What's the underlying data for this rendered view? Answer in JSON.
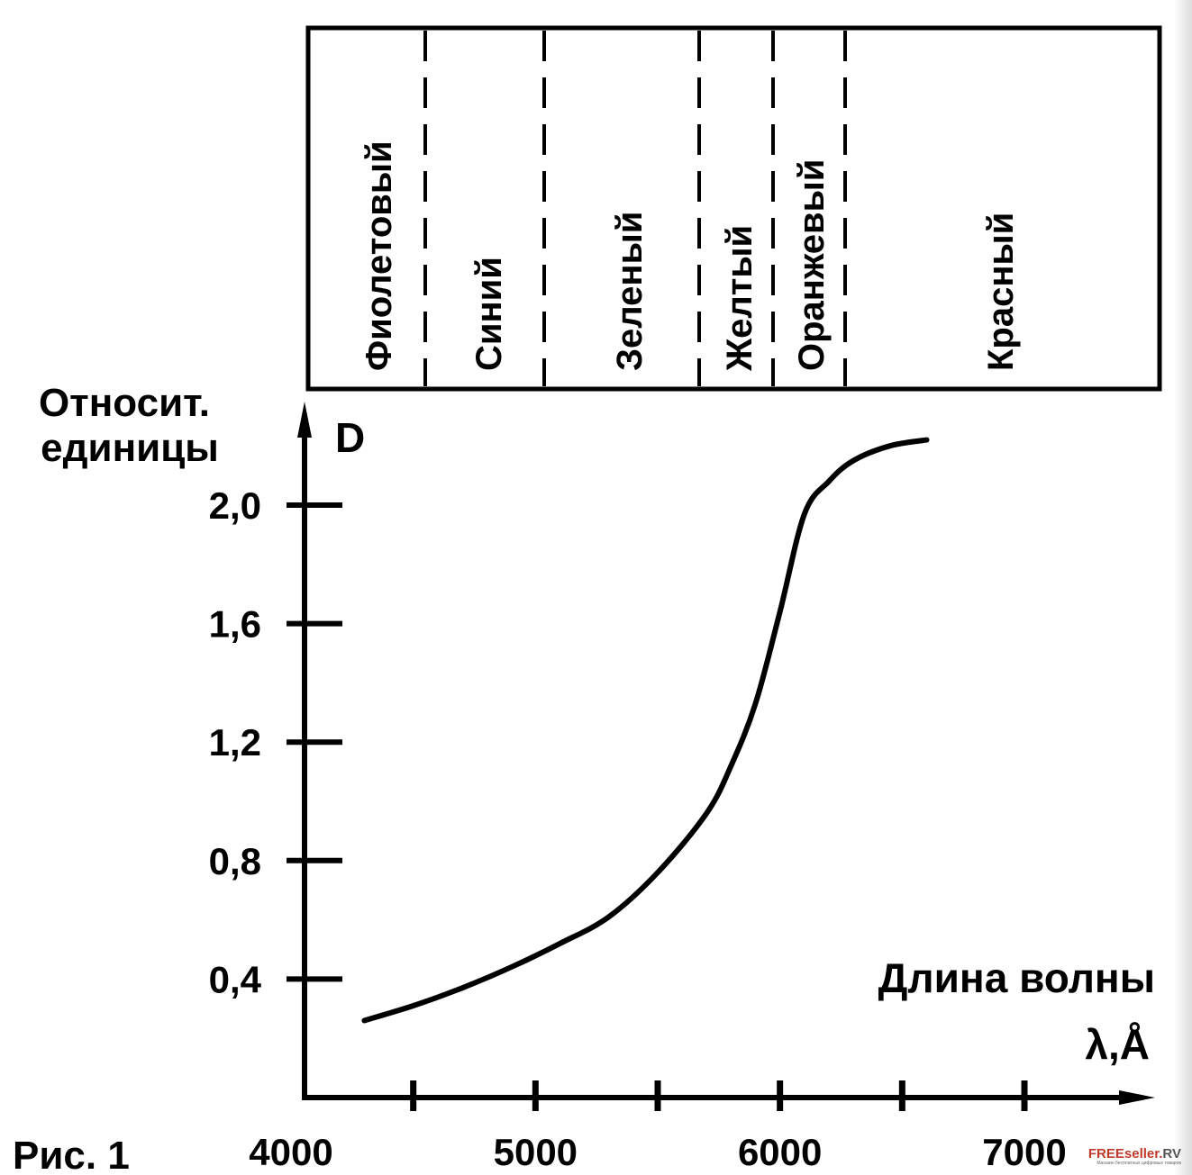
{
  "figure": {
    "caption": "Рис. 1"
  },
  "spectrum_bands": [
    "Фиолетовый",
    "Синий",
    "Зеленый",
    "Желтый",
    "Оранжевый",
    "Красный"
  ],
  "watermark": {
    "brand": "FREEseller.",
    "brand_suffix": "RV",
    "tagline": "Магазин бесплатных цифровых товаров"
  },
  "chart_data": {
    "type": "line",
    "ylabel": "Относит. единицы",
    "ylabel_line1": "Относит.",
    "ylabel_line2": "единицы",
    "series_label": "D",
    "xlabel": "Длина волны",
    "xunit": "λ,Å",
    "xlim": [
      4000,
      7400
    ],
    "ylim": [
      0,
      2.4
    ],
    "x_ticks": [
      4000,
      5000,
      6000,
      7000
    ],
    "x_tick_labels": [
      "4000",
      "5000",
      "6000",
      "7000"
    ],
    "x_minor_ticks": [
      4500,
      5500,
      6500
    ],
    "y_ticks": [
      0.4,
      0.8,
      1.2,
      1.6,
      2.0
    ],
    "y_tick_labels": [
      "0,4",
      "0,8",
      "1,2",
      "1,6",
      "2,0"
    ],
    "grid": false,
    "series": [
      {
        "x": [
          4300,
          4500,
          4700,
          4900,
          5100,
          5300,
          5500,
          5700,
          5800,
          5900,
          6000,
          6100,
          6200,
          6300,
          6450,
          6600
        ],
        "values": [
          0.26,
          0.31,
          0.37,
          0.44,
          0.52,
          0.61,
          0.76,
          0.96,
          1.12,
          1.33,
          1.64,
          1.97,
          2.08,
          2.15,
          2.2,
          2.22
        ]
      }
    ]
  }
}
